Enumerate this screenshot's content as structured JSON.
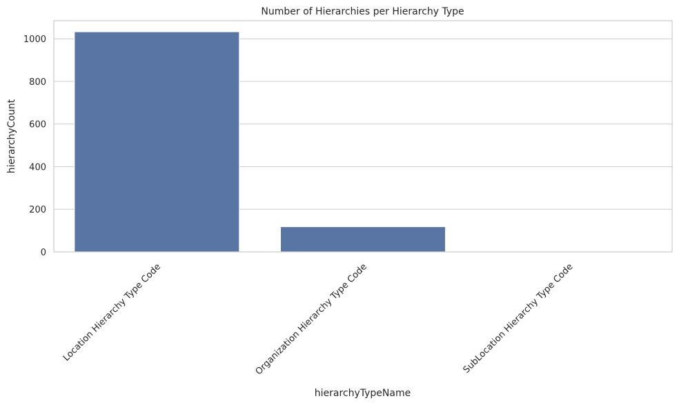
{
  "chart_data": {
    "type": "bar",
    "title": "Number of Hierarchies per Hierarchy Type",
    "xlabel": "hierarchyTypeName",
    "ylabel": "hierarchyCount",
    "categories": [
      "Location Hierarchy Type Code",
      "Organization Hierarchy Type Code",
      "SubLocation Hierarchy Type Code"
    ],
    "values": [
      1033,
      118,
      2
    ],
    "ylim": [
      0,
      1085
    ],
    "yticks": [
      0,
      200,
      400,
      600,
      800,
      1000
    ],
    "grid": true,
    "bar_color": "#5975a4",
    "grid_color": "#cccccc"
  }
}
